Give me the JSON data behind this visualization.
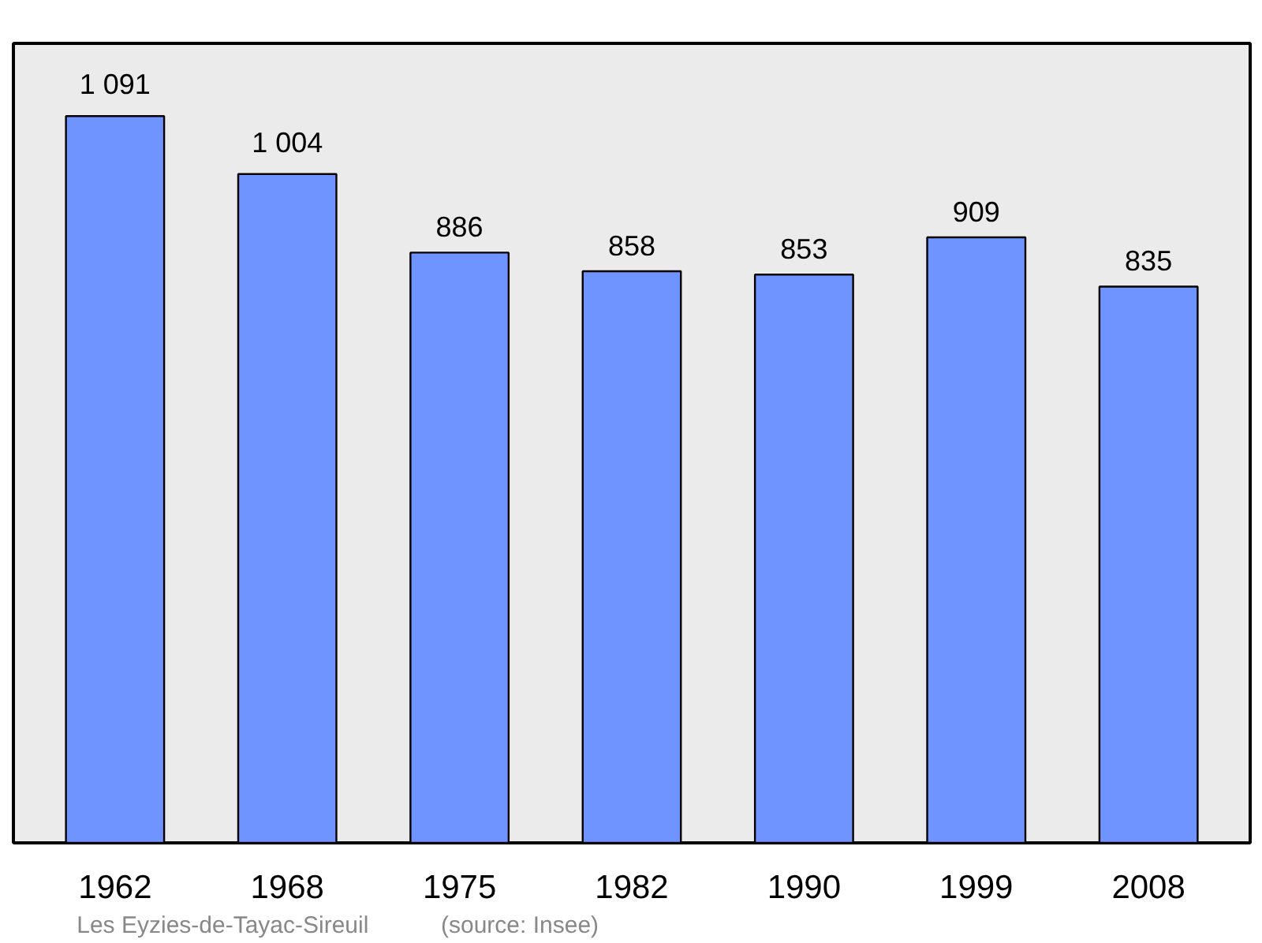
{
  "chart_data": {
    "type": "bar",
    "categories": [
      "1962",
      "1968",
      "1975",
      "1982",
      "1990",
      "1999",
      "2008"
    ],
    "values": [
      1091,
      1004,
      886,
      858,
      853,
      909,
      835
    ],
    "value_labels": [
      "1 091",
      "1 004",
      "886",
      "858",
      "853",
      "909",
      "835"
    ],
    "color": "#7094ff",
    "annotations": [
      "Les Eyzies-de-Tayac-Sireuil",
      "(source: Insee)"
    ],
    "grid": false
  }
}
